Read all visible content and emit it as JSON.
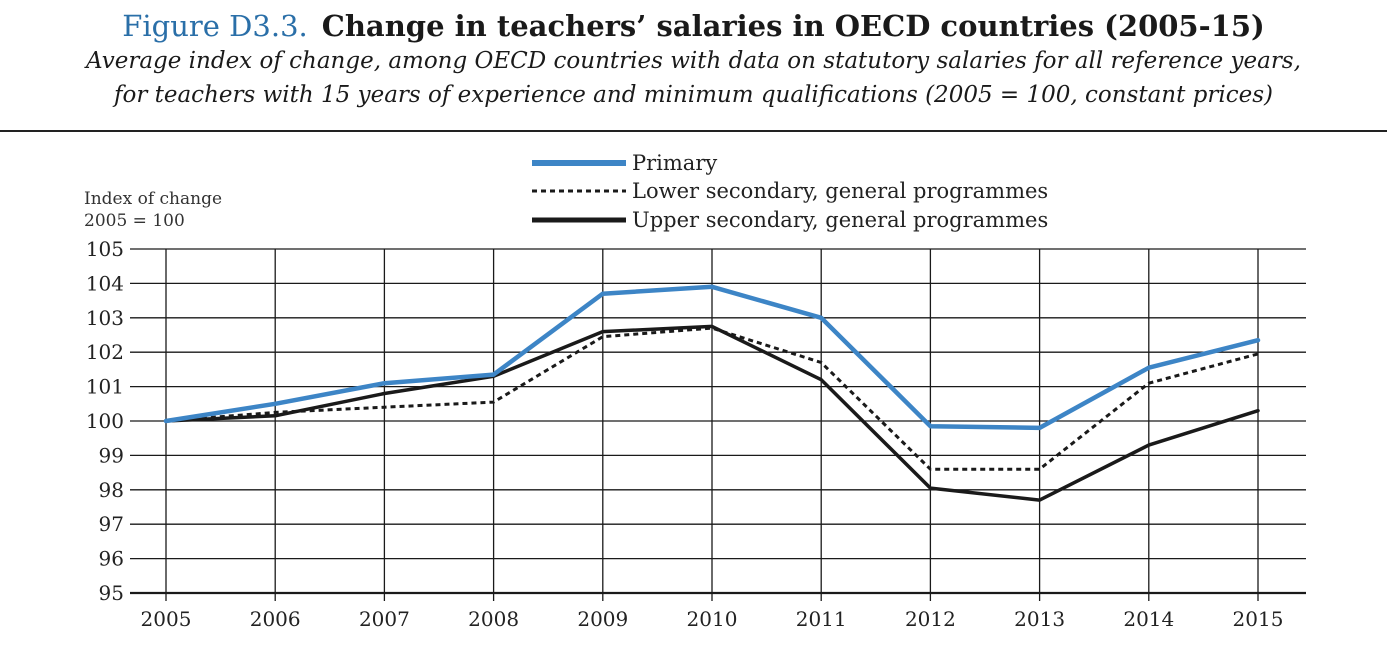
{
  "figure": {
    "label": "Figure D3.3.",
    "title": "Change in teachers’ salaries in OECD countries (2005-15)",
    "subtitle_line1": "Average index of change, among OECD countries with data on statutory salaries for all reference years,",
    "subtitle_line2": "for teachers with 15 years of experience and minimum qualifications (2005 = 100, constant prices)"
  },
  "colors": {
    "primary": "#3d85c6",
    "lower_secondary": "#1a1a1a",
    "upper_secondary": "#1a1a1a",
    "grid": "#1a1a1a"
  },
  "chart_data": {
    "type": "line",
    "title": "Change in teachers’ salaries in OECD countries (2005-15)",
    "ylabel_line1": "Index of change",
    "ylabel_line2": "2005 = 100",
    "xlabel": "",
    "ylim": [
      95,
      105
    ],
    "yticks": [
      95,
      96,
      97,
      98,
      99,
      100,
      101,
      102,
      103,
      104,
      105
    ],
    "x": [
      "2005",
      "2006",
      "2007",
      "2008",
      "2009",
      "2010",
      "2011",
      "2012",
      "2013",
      "2014",
      "2015"
    ],
    "grid": "horizontal and vertical",
    "legend_position": "top-center",
    "series": [
      {
        "name": "Primary",
        "style": "solid-thick-blue",
        "values": [
          100.0,
          100.5,
          101.1,
          101.35,
          103.7,
          103.9,
          103.0,
          99.85,
          99.8,
          101.55,
          102.35
        ]
      },
      {
        "name": "Lower secondary, general programmes",
        "style": "dotted-black",
        "values": [
          100.0,
          100.25,
          100.4,
          100.55,
          102.45,
          102.7,
          101.7,
          98.6,
          98.6,
          101.1,
          101.95
        ]
      },
      {
        "name": "Upper secondary, general programmes",
        "style": "solid-black",
        "values": [
          100.0,
          100.15,
          100.8,
          101.3,
          102.6,
          102.75,
          101.2,
          98.05,
          97.7,
          99.3,
          100.3
        ]
      }
    ]
  }
}
